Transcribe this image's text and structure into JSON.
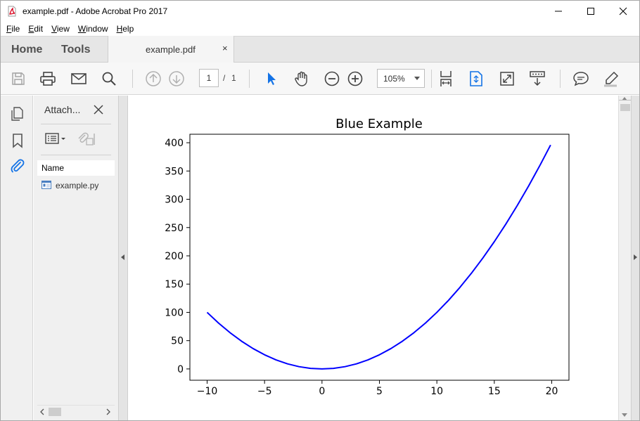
{
  "window": {
    "title": "example.pdf - Adobe Acrobat Pro 2017",
    "controls": {
      "minimize": "minimize-icon",
      "maximize": "maximize-icon",
      "close": "close-icon"
    }
  },
  "menu": [
    "File",
    "Edit",
    "View",
    "Window",
    "Help"
  ],
  "tabs": {
    "home": "Home",
    "tools": "Tools",
    "document": {
      "label": "example.pdf",
      "close": "×"
    }
  },
  "toolbar": {
    "page_current": "1",
    "page_separator": "/",
    "page_total": "1",
    "zoom": "105%",
    "icons": [
      "save-icon",
      "print-icon",
      "email-icon",
      "search-icon",
      "page-up-icon",
      "page-down-icon",
      "select-pointer-icon",
      "hand-icon",
      "zoom-out-icon",
      "zoom-in-icon",
      "fit-width-icon",
      "fit-page-icon",
      "full-screen-icon",
      "scroll-mode-icon",
      "comment-icon",
      "highlight-icon"
    ],
    "accent_color": "#1473e6"
  },
  "left_rail": {
    "icons": [
      "pages-icon",
      "bookmark-icon",
      "attachment-icon"
    ]
  },
  "attachments_panel": {
    "title": "Attach...",
    "column_header": "Name",
    "files": [
      {
        "name": "example.py"
      }
    ]
  },
  "chart_data": {
    "type": "line",
    "title": "Blue Example",
    "xlabel": "",
    "ylabel": "",
    "xlim": [
      -11.5,
      21.5
    ],
    "ylim": [
      -20,
      415
    ],
    "xticks": [
      -10,
      -5,
      0,
      5,
      10,
      15,
      20
    ],
    "xtick_labels": [
      "−10",
      "−5",
      "0",
      "5",
      "10",
      "15",
      "20"
    ],
    "yticks": [
      0,
      50,
      100,
      150,
      200,
      250,
      300,
      350,
      400
    ],
    "ytick_labels": [
      "0",
      "50",
      "100",
      "150",
      "200",
      "250",
      "300",
      "350",
      "400"
    ],
    "grid": false,
    "series": [
      {
        "color": "#0000ff",
        "x": [
          -10,
          -9,
          -8,
          -7,
          -6,
          -5,
          -4,
          -3,
          -2,
          -1,
          0,
          1,
          2,
          3,
          4,
          5,
          6,
          7,
          8,
          9,
          10,
          11,
          12,
          13,
          14,
          15,
          16,
          17,
          18,
          19,
          19.9
        ],
        "y": [
          100,
          81,
          64,
          49,
          36,
          25,
          16,
          9,
          4,
          1,
          0,
          1,
          4,
          9,
          16,
          25,
          36,
          49,
          64,
          81,
          100,
          121,
          144,
          169,
          196,
          225,
          256,
          289,
          324,
          361,
          396
        ]
      }
    ]
  }
}
